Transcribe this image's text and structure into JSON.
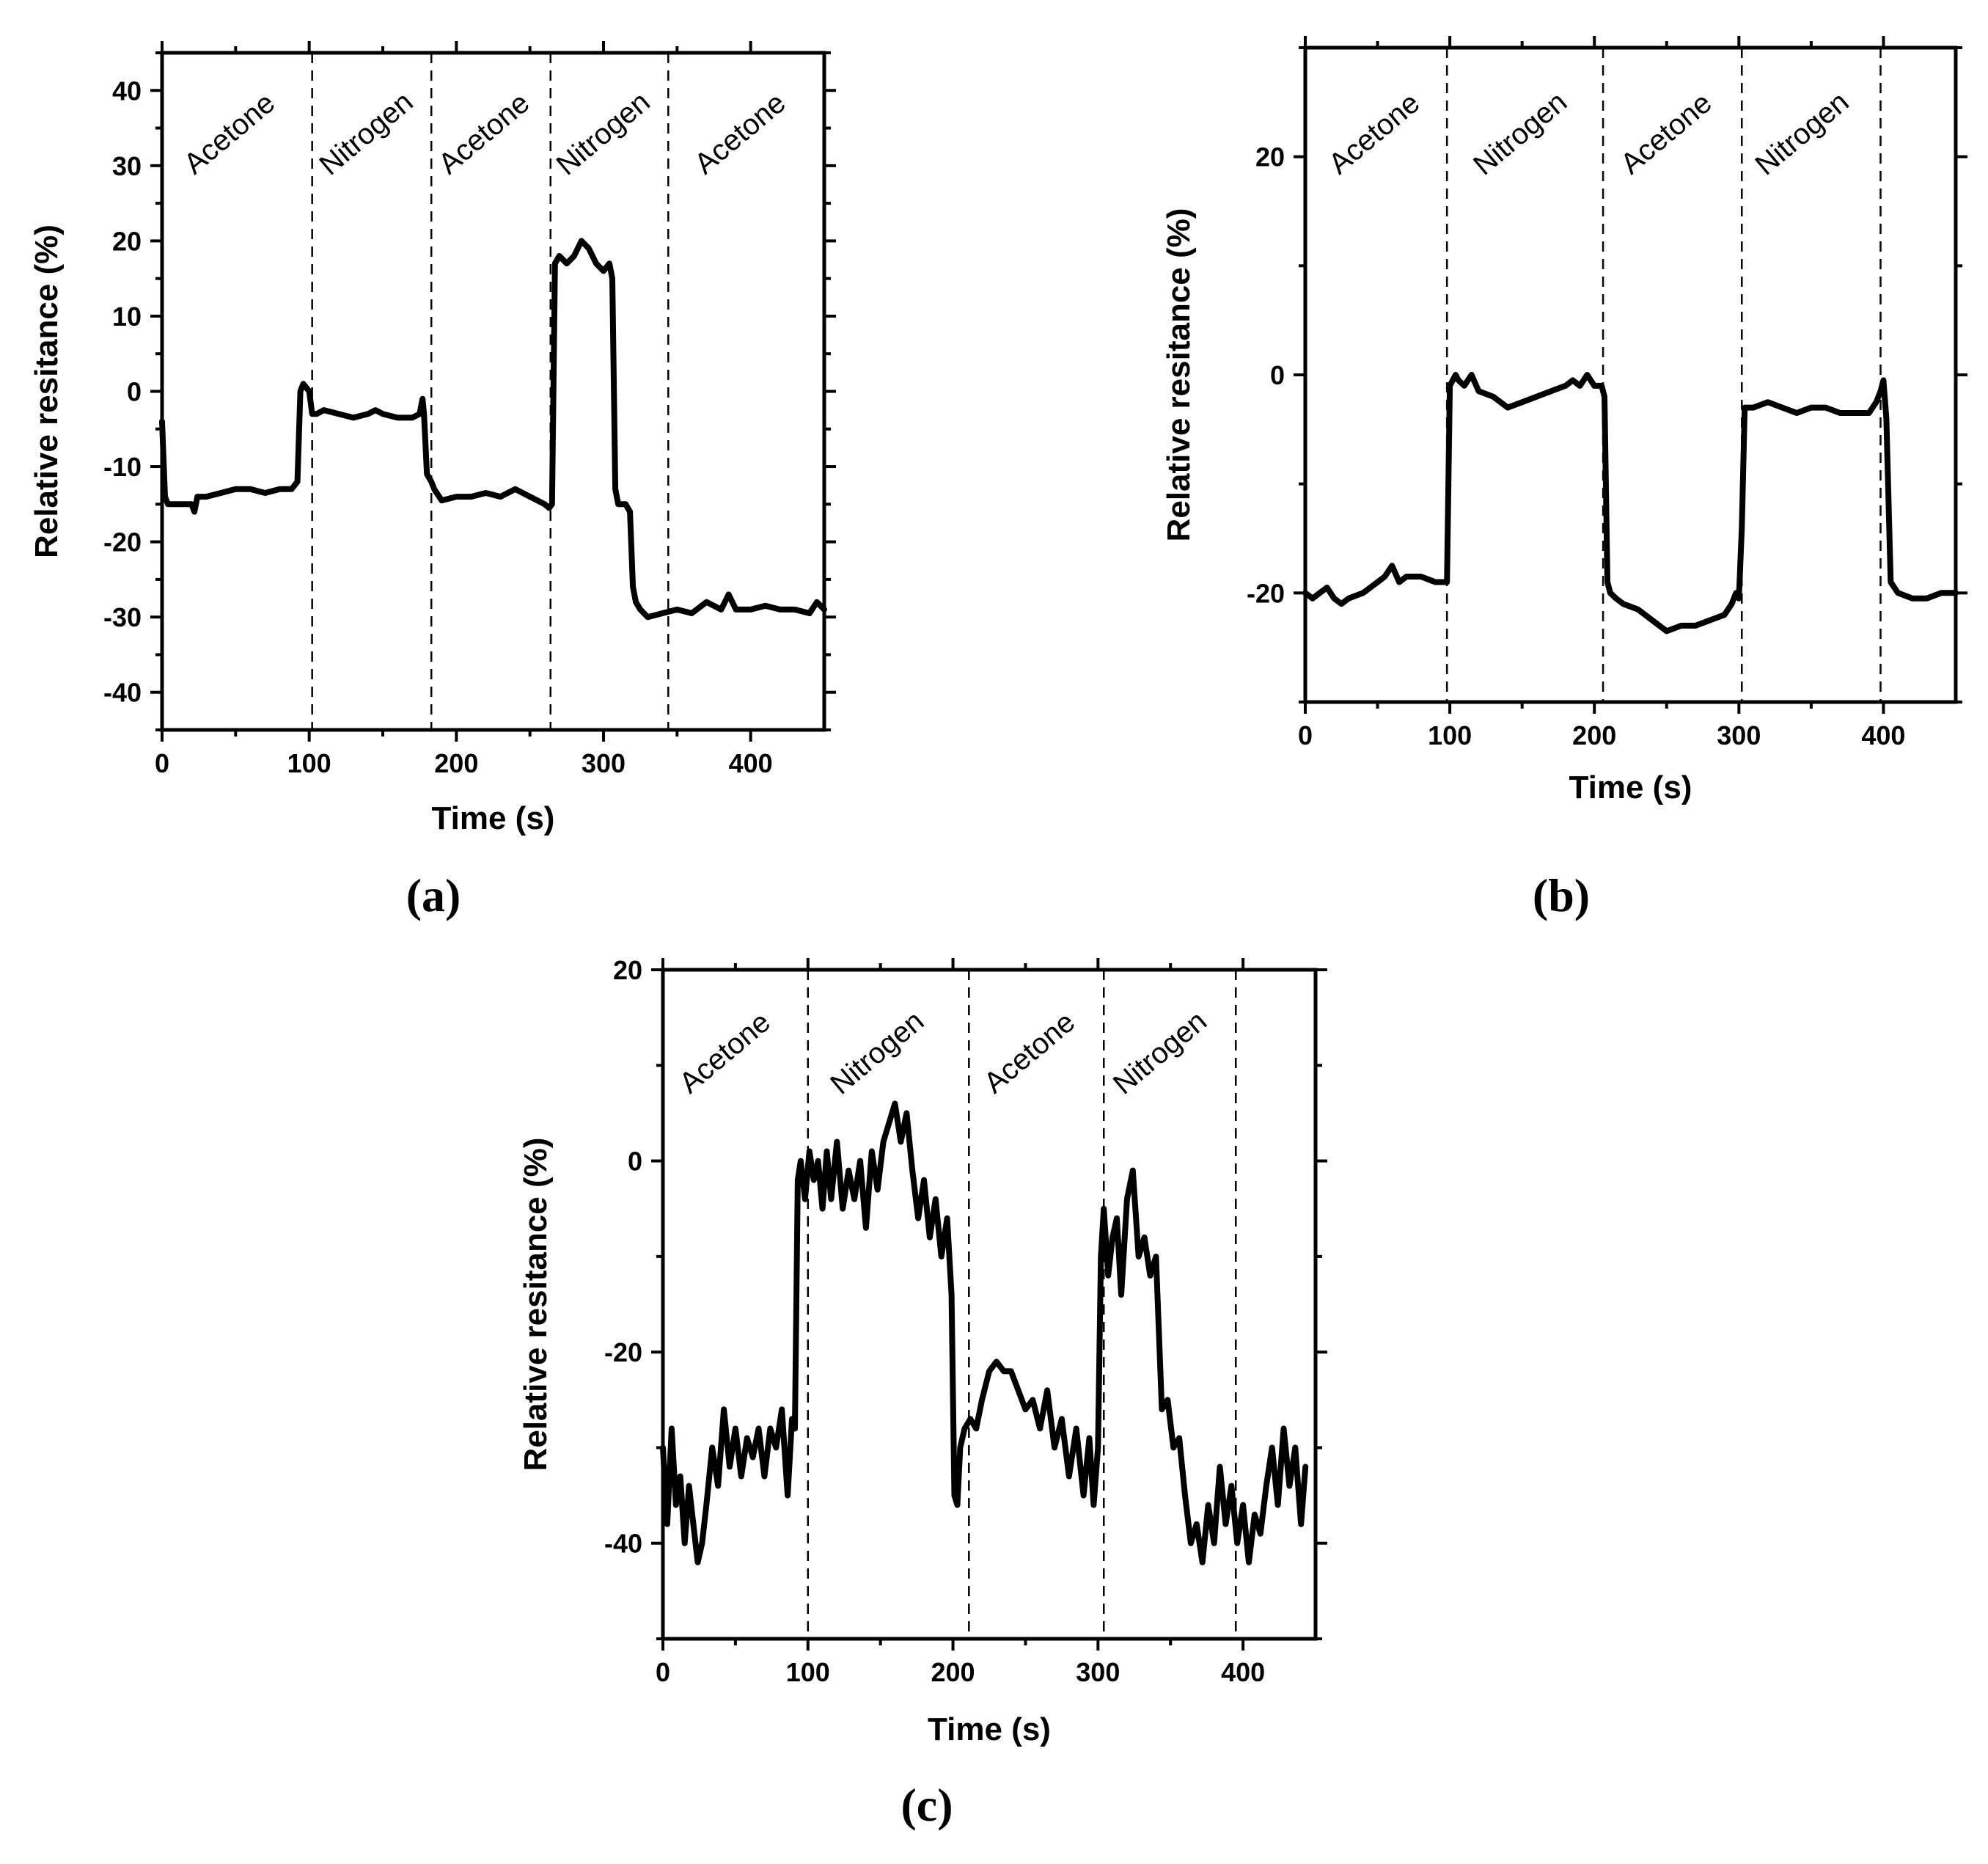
{
  "chart_data": [
    {
      "id": "a",
      "type": "line",
      "panel_label": "(a)",
      "xlabel": "Time (s)",
      "ylabel": "Relative resitance (%)",
      "xlim": [
        0,
        450
      ],
      "ylim": [
        -45,
        45
      ],
      "xticks": [
        0,
        100,
        200,
        300,
        400
      ],
      "yticks": [
        -40,
        -30,
        -20,
        -10,
        0,
        10,
        20,
        30,
        40
      ],
      "boundaries": [
        102,
        183,
        264,
        344
      ],
      "regions": [
        {
          "label": "Acetone",
          "x": 50
        },
        {
          "label": "Nitrogen",
          "x": 143
        },
        {
          "label": "Acetone",
          "x": 223
        },
        {
          "label": "Nitrogen",
          "x": 304
        },
        {
          "label": "Acetone",
          "x": 397
        }
      ],
      "series": [
        {
          "name": "relative resistance",
          "x": [
            0,
            2,
            4,
            10,
            20,
            22,
            24,
            30,
            40,
            50,
            60,
            70,
            80,
            88,
            92,
            94,
            96,
            100,
            102,
            105,
            110,
            120,
            130,
            140,
            145,
            150,
            160,
            170,
            175,
            177,
            178,
            180,
            183,
            185,
            190,
            200,
            210,
            220,
            230,
            240,
            250,
            255,
            260,
            263,
            265,
            267,
            270,
            275,
            280,
            285,
            290,
            295,
            300,
            304,
            306,
            308,
            310,
            315,
            318,
            320,
            322,
            325,
            330,
            340,
            350,
            360,
            370,
            380,
            385,
            390,
            400,
            410,
            420,
            430,
            440,
            445,
            450
          ],
          "y": [
            -4,
            -14,
            -15,
            -15,
            -15,
            -16,
            -14,
            -14,
            -13.5,
            -13,
            -13,
            -13.5,
            -13,
            -13,
            -12,
            0,
            1,
            0,
            -3,
            -3,
            -2.5,
            -3,
            -3.5,
            -3,
            -2.5,
            -3,
            -3.5,
            -3.5,
            -3,
            -1,
            -3,
            -11,
            -12,
            -13,
            -14.5,
            -14,
            -14,
            -13.5,
            -14,
            -13,
            -14,
            -14.5,
            -15,
            -15.5,
            -15,
            17,
            18,
            17,
            18,
            20,
            19,
            17,
            16,
            17,
            15,
            -13,
            -15,
            -15,
            -16,
            -26,
            -28,
            -29,
            -30,
            -29.5,
            -29,
            -29.5,
            -28,
            -29,
            -27,
            -29,
            -29,
            -28.5,
            -29,
            -29,
            -29.5,
            -28,
            -29
          ]
        }
      ]
    },
    {
      "id": "b",
      "type": "line",
      "panel_label": "(b)",
      "xlabel": "Time (s)",
      "ylabel": "Relative resitance (%)",
      "xlim": [
        0,
        450
      ],
      "ylim": [
        -30,
        30
      ],
      "xticks": [
        0,
        100,
        200,
        300,
        400
      ],
      "yticks": [
        -20,
        0,
        20
      ],
      "boundaries": [
        98,
        206,
        302,
        398
      ],
      "regions": [
        {
          "label": "Acetone",
          "x": 52
        },
        {
          "label": "Nitrogen",
          "x": 153
        },
        {
          "label": "Acetone",
          "x": 254
        },
        {
          "label": "Nitrogen",
          "x": 348
        }
      ],
      "series": [
        {
          "name": "relative resistance",
          "x": [
            0,
            5,
            10,
            15,
            20,
            25,
            30,
            40,
            50,
            55,
            60,
            65,
            70,
            80,
            90,
            96,
            98,
            100,
            104,
            106,
            110,
            115,
            120,
            130,
            140,
            150,
            160,
            170,
            180,
            185,
            190,
            195,
            200,
            205,
            207,
            209,
            211,
            215,
            220,
            230,
            240,
            250,
            260,
            270,
            280,
            290,
            295,
            298,
            300,
            302,
            304,
            310,
            320,
            330,
            340,
            350,
            360,
            370,
            380,
            390,
            395,
            398,
            400,
            402,
            405,
            410,
            420,
            430,
            440,
            450
          ],
          "y": [
            -20,
            -20.5,
            -20,
            -19.5,
            -20.5,
            -21,
            -20.5,
            -20,
            -19,
            -18.5,
            -17.5,
            -19,
            -18.5,
            -18.5,
            -19,
            -19,
            -19,
            -1,
            0,
            -0.5,
            -1,
            0,
            -1.5,
            -2,
            -3,
            -2.5,
            -2,
            -1.5,
            -1,
            -0.5,
            -1,
            0,
            -1,
            -1,
            -2,
            -19,
            -20,
            -20.5,
            -21,
            -21.5,
            -22.5,
            -23.5,
            -23,
            -23,
            -22.5,
            -22,
            -21,
            -20,
            -20.5,
            -14,
            -3,
            -3,
            -2.5,
            -3,
            -3.5,
            -3,
            -3,
            -3.5,
            -3.5,
            -3.5,
            -2.5,
            -1.5,
            -0.5,
            -4,
            -19,
            -20,
            -20.5,
            -20.5,
            -20,
            -20
          ]
        }
      ]
    },
    {
      "id": "c",
      "type": "line",
      "panel_label": "(c)",
      "xlabel": "Time (s)",
      "ylabel": "Relative resitance (%)",
      "xlim": [
        0,
        450
      ],
      "ylim": [
        -50,
        20
      ],
      "xticks": [
        0,
        100,
        200,
        300,
        400
      ],
      "yticks": [
        -40,
        -20,
        0,
        20
      ],
      "boundaries": [
        100,
        211,
        304,
        395
      ],
      "regions": [
        {
          "label": "Acetone",
          "x": 47
        },
        {
          "label": "Nitrogen",
          "x": 152
        },
        {
          "label": "Acetone",
          "x": 257
        },
        {
          "label": "Nitrogen",
          "x": 347
        }
      ],
      "series": [
        {
          "name": "relative resistance",
          "x": [
            0,
            3,
            6,
            9,
            12,
            15,
            18,
            21,
            24,
            27,
            30,
            34,
            38,
            42,
            46,
            50,
            54,
            58,
            62,
            66,
            70,
            74,
            78,
            82,
            86,
            89,
            91,
            93,
            95,
            98,
            101,
            104,
            107,
            110,
            113,
            116,
            120,
            124,
            128,
            132,
            136,
            140,
            144,
            148,
            152,
            156,
            160,
            164,
            168,
            172,
            176,
            180,
            184,
            188,
            192,
            196,
            199,
            201,
            203,
            205,
            208,
            212,
            216,
            220,
            225,
            230,
            235,
            240,
            245,
            250,
            255,
            260,
            265,
            270,
            275,
            280,
            285,
            290,
            294,
            297,
            300,
            302,
            304,
            307,
            310,
            313,
            316,
            320,
            324,
            328,
            332,
            336,
            340,
            344,
            348,
            352,
            356,
            360,
            364,
            368,
            372,
            376,
            380,
            384,
            388,
            392,
            396,
            400,
            404,
            408,
            412,
            416,
            420,
            424,
            428,
            432,
            436,
            440,
            443
          ],
          "y": [
            -30,
            -38,
            -28,
            -36,
            -33,
            -40,
            -34,
            -38,
            -42,
            -40,
            -36,
            -30,
            -34,
            -26,
            -32,
            -28,
            -33,
            -29,
            -31,
            -28,
            -33,
            -28,
            -30,
            -26,
            -35,
            -27,
            -28,
            -2,
            0,
            -4,
            1,
            -2,
            0,
            -5,
            1,
            -4,
            2,
            -5,
            -1,
            -4,
            0,
            -7,
            1,
            -3,
            2,
            4,
            6,
            2,
            5,
            -1,
            -6,
            -2,
            -8,
            -4,
            -10,
            -6,
            -14,
            -35,
            -36,
            -30,
            -28,
            -27,
            -28,
            -25,
            -22,
            -21,
            -22,
            -22,
            -24,
            -26,
            -25,
            -28,
            -24,
            -30,
            -27,
            -33,
            -28,
            -35,
            -29,
            -36,
            -30,
            -10,
            -5,
            -12,
            -8,
            -6,
            -14,
            -4,
            -1,
            -10,
            -8,
            -12,
            -10,
            -26,
            -25,
            -30,
            -29,
            -35,
            -40,
            -38,
            -42,
            -36,
            -40,
            -32,
            -38,
            -34,
            -40,
            -36,
            -42,
            -37,
            -39,
            -34,
            -30,
            -36,
            -28,
            -34,
            -30,
            -38,
            -32
          ]
        }
      ]
    }
  ]
}
